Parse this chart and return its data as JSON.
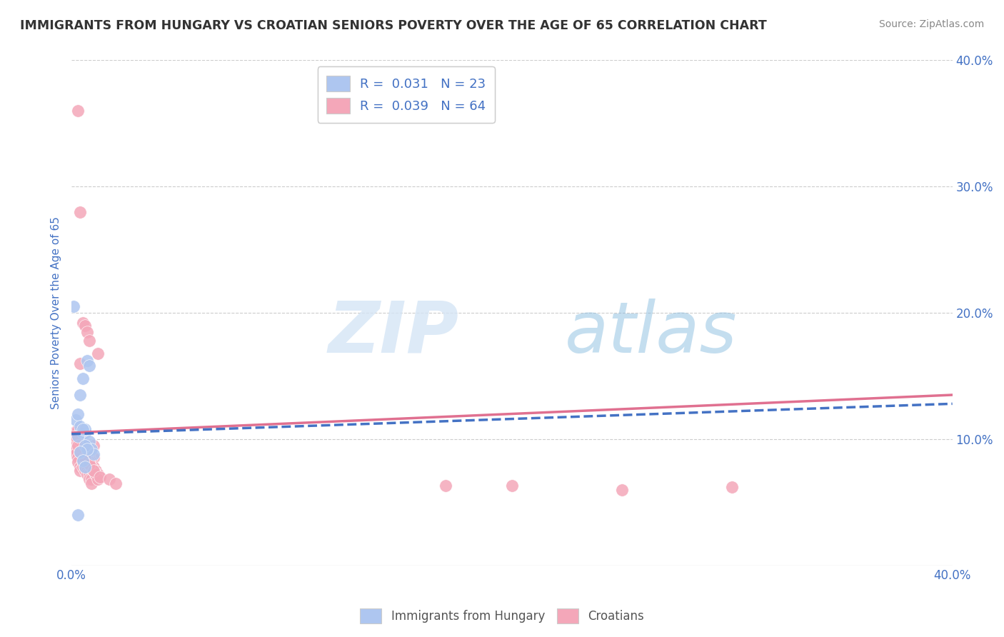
{
  "title": "IMMIGRANTS FROM HUNGARY VS CROATIAN SENIORS POVERTY OVER THE AGE OF 65 CORRELATION CHART",
  "source": "Source: ZipAtlas.com",
  "ylabel": "Seniors Poverty Over the Age of 65",
  "watermark_zip": "ZIP",
  "watermark_atlas": "atlas",
  "legend_entries": [
    {
      "label": "R =  0.031   N = 23",
      "color": "#aec6f0"
    },
    {
      "label": "R =  0.039   N = 64",
      "color": "#f4a7b9"
    }
  ],
  "legend_bottom": [
    "Immigrants from Hungary",
    "Croatians"
  ],
  "xlim": [
    0,
    0.4
  ],
  "ylim": [
    0,
    0.4
  ],
  "xtick_positions": [
    0.0,
    0.4
  ],
  "xtick_labels": [
    "0.0%",
    "40.0%"
  ],
  "yticks_right": [
    0.1,
    0.2,
    0.3,
    0.4
  ],
  "ytick_labels_right": [
    "10.0%",
    "20.0%",
    "30.0%",
    "40.0%"
  ],
  "grid_color": "#cccccc",
  "background_color": "#ffffff",
  "blue_scatter_color": "#aec6f0",
  "pink_scatter_color": "#f4a7b9",
  "blue_line_color": "#4472c4",
  "pink_line_color": "#e07090",
  "title_color": "#333333",
  "axis_label_color": "#4472c4",
  "blue_x": [
    0.001,
    0.002,
    0.003,
    0.004,
    0.005,
    0.006,
    0.007,
    0.008,
    0.009,
    0.01,
    0.003,
    0.004,
    0.005,
    0.006,
    0.007,
    0.008,
    0.005,
    0.006,
    0.007,
    0.004,
    0.005,
    0.006,
    0.003
  ],
  "blue_y": [
    0.205,
    0.115,
    0.12,
    0.11,
    0.105,
    0.105,
    0.095,
    0.098,
    0.092,
    0.088,
    0.102,
    0.135,
    0.148,
    0.108,
    0.162,
    0.158,
    0.108,
    0.095,
    0.092,
    0.09,
    0.083,
    0.078,
    0.04
  ],
  "pink_x": [
    0.001,
    0.001,
    0.002,
    0.002,
    0.003,
    0.003,
    0.003,
    0.004,
    0.004,
    0.004,
    0.005,
    0.005,
    0.005,
    0.006,
    0.006,
    0.006,
    0.007,
    0.007,
    0.007,
    0.008,
    0.008,
    0.008,
    0.009,
    0.009,
    0.01,
    0.01,
    0.01,
    0.011,
    0.011,
    0.012,
    0.003,
    0.004,
    0.005,
    0.006,
    0.007,
    0.008,
    0.009,
    0.01,
    0.011,
    0.012,
    0.003,
    0.004,
    0.005,
    0.006,
    0.007,
    0.008,
    0.009,
    0.01,
    0.011,
    0.012,
    0.17,
    0.2,
    0.25,
    0.3,
    0.002,
    0.003,
    0.004,
    0.006,
    0.008,
    0.01,
    0.013,
    0.017,
    0.02,
    0.004
  ],
  "pink_y": [
    0.105,
    0.095,
    0.092,
    0.088,
    0.085,
    0.082,
    0.36,
    0.078,
    0.075,
    0.28,
    0.082,
    0.078,
    0.192,
    0.078,
    0.075,
    0.19,
    0.075,
    0.072,
    0.185,
    0.072,
    0.068,
    0.178,
    0.068,
    0.065,
    0.095,
    0.085,
    0.078,
    0.075,
    0.072,
    0.168,
    0.102,
    0.098,
    0.095,
    0.092,
    0.088,
    0.085,
    0.082,
    0.078,
    0.075,
    0.072,
    0.108,
    0.105,
    0.098,
    0.095,
    0.088,
    0.082,
    0.078,
    0.075,
    0.072,
    0.068,
    0.063,
    0.063,
    0.06,
    0.062,
    0.102,
    0.095,
    0.09,
    0.085,
    0.08,
    0.075,
    0.07,
    0.068,
    0.065,
    0.16
  ]
}
